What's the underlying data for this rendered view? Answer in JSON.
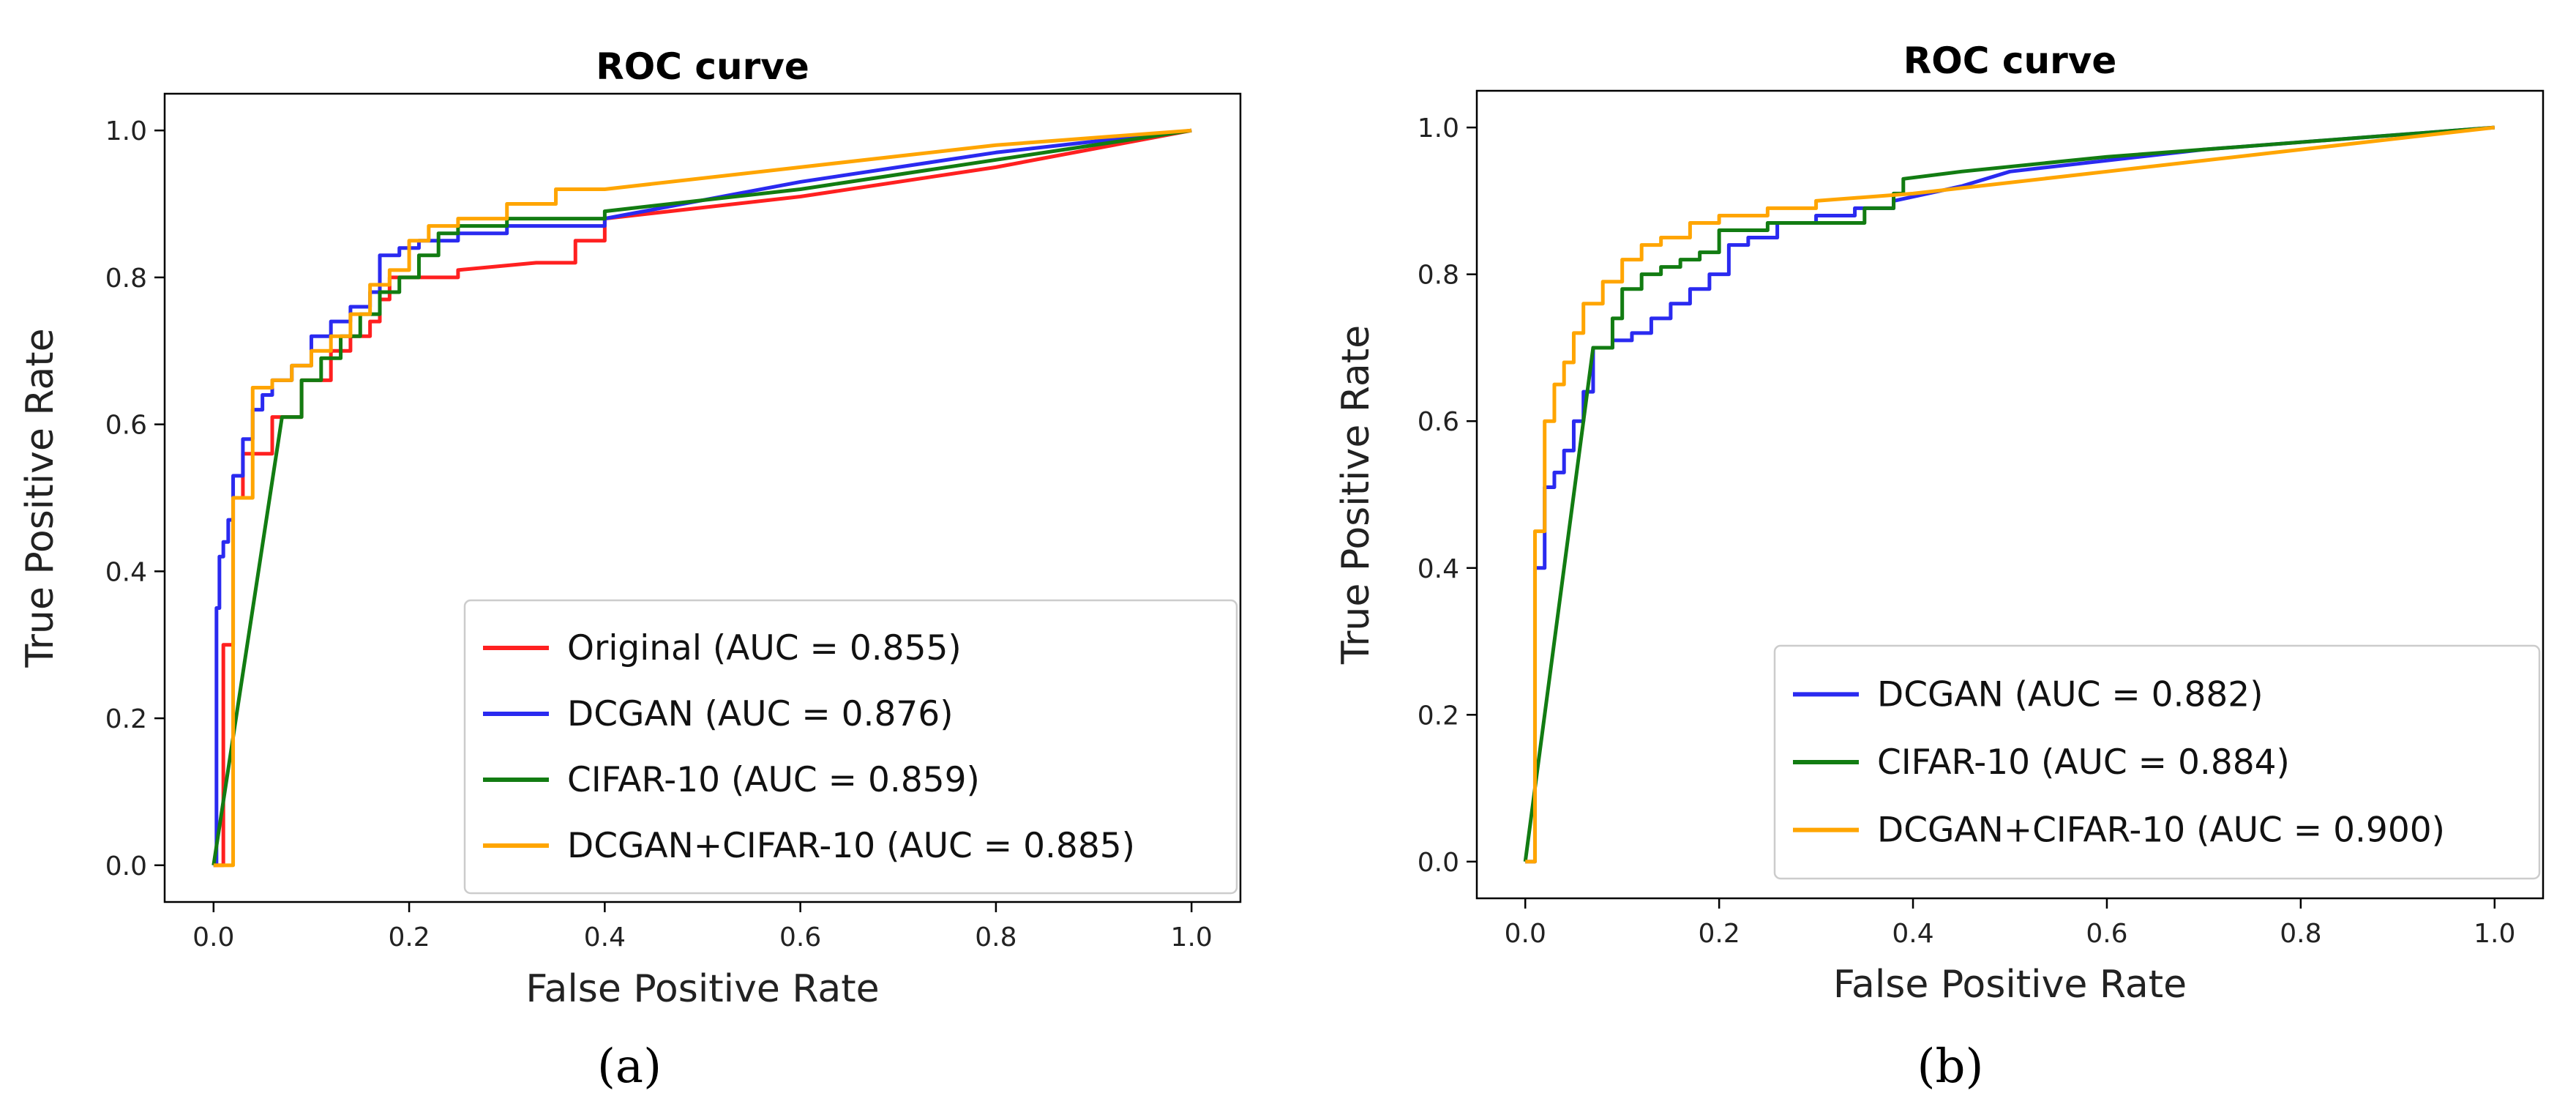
{
  "chart_data": [
    {
      "type": "line",
      "panel_label": "(a)",
      "title": "ROC curve",
      "xlabel": "False Positive Rate",
      "ylabel": "True Positive Rate",
      "xlim": [
        -0.05,
        1.05
      ],
      "ylim": [
        -0.05,
        1.05
      ],
      "xticks": [
        "0.0",
        "0.2",
        "0.4",
        "0.6",
        "0.8",
        "1.0"
      ],
      "yticks": [
        "0.0",
        "0.2",
        "0.4",
        "0.6",
        "0.8",
        "1.0"
      ],
      "grid": false,
      "legend_position": "lower-right",
      "series": [
        {
          "name": "Original (AUC = 0.855)",
          "color": "#ff2020",
          "x": [
            0,
            0.01,
            0.02,
            0.03,
            0.06,
            0.09,
            0.12,
            0.14,
            0.16,
            0.17,
            0.18,
            0.19,
            0.21,
            0.25,
            0.33,
            0.35,
            0.37,
            0.4,
            0.6,
            0.8,
            1.0
          ],
          "y": [
            0,
            0.3,
            0.5,
            0.56,
            0.61,
            0.66,
            0.7,
            0.72,
            0.74,
            0.77,
            0.8,
            0.8,
            0.8,
            0.81,
            0.82,
            0.82,
            0.85,
            0.88,
            0.91,
            0.95,
            1.0
          ]
        },
        {
          "name": "DCGAN (AUC = 0.876)",
          "color": "#2a2af0",
          "x": [
            0,
            0.003,
            0.006,
            0.01,
            0.015,
            0.02,
            0.03,
            0.04,
            0.05,
            0.06,
            0.08,
            0.1,
            0.12,
            0.14,
            0.16,
            0.17,
            0.19,
            0.21,
            0.25,
            0.3,
            0.35,
            0.4,
            0.6,
            0.8,
            1.0
          ],
          "y": [
            0,
            0.35,
            0.42,
            0.44,
            0.47,
            0.53,
            0.58,
            0.62,
            0.64,
            0.66,
            0.68,
            0.72,
            0.74,
            0.76,
            0.78,
            0.83,
            0.84,
            0.85,
            0.86,
            0.87,
            0.87,
            0.88,
            0.93,
            0.97,
            1.0
          ]
        },
        {
          "name": "CIFAR-10 (AUC = 0.859)",
          "color": "#127c12",
          "x": [
            0,
            0.07,
            0.09,
            0.11,
            0.13,
            0.15,
            0.17,
            0.19,
            0.21,
            0.23,
            0.25,
            0.3,
            0.35,
            0.4,
            0.6,
            0.8,
            1.0
          ],
          "y": [
            0,
            0.61,
            0.66,
            0.69,
            0.72,
            0.75,
            0.78,
            0.8,
            0.83,
            0.86,
            0.87,
            0.88,
            0.88,
            0.89,
            0.92,
            0.96,
            1.0
          ]
        },
        {
          "name": "DCGAN+CIFAR-10 (AUC = 0.885)",
          "color": "#ffa500",
          "x": [
            0,
            0.02,
            0.04,
            0.06,
            0.08,
            0.1,
            0.12,
            0.14,
            0.16,
            0.18,
            0.2,
            0.22,
            0.25,
            0.3,
            0.35,
            0.4,
            0.6,
            0.8,
            1.0
          ],
          "y": [
            0,
            0.5,
            0.65,
            0.66,
            0.68,
            0.7,
            0.72,
            0.75,
            0.79,
            0.81,
            0.85,
            0.87,
            0.88,
            0.9,
            0.92,
            0.92,
            0.95,
            0.98,
            1.0
          ]
        }
      ]
    },
    {
      "type": "line",
      "panel_label": "(b)",
      "title": "ROC curve",
      "xlabel": "False Positive Rate",
      "ylabel": "True Positive Rate",
      "xlim": [
        -0.05,
        1.05
      ],
      "ylim": [
        -0.05,
        1.05
      ],
      "xticks": [
        "0.0",
        "0.2",
        "0.4",
        "0.6",
        "0.8",
        "1.0"
      ],
      "yticks": [
        "0.0",
        "0.2",
        "0.4",
        "0.6",
        "0.8",
        "1.0"
      ],
      "grid": false,
      "legend_position": "lower-right",
      "series": [
        {
          "name": "DCGAN (AUC = 0.882)",
          "color": "#2a2af0",
          "x": [
            0,
            0.01,
            0.02,
            0.03,
            0.04,
            0.05,
            0.06,
            0.07,
            0.09,
            0.11,
            0.13,
            0.15,
            0.17,
            0.19,
            0.21,
            0.23,
            0.26,
            0.3,
            0.34,
            0.38,
            0.45,
            0.5,
            0.7,
            0.9,
            1.0
          ],
          "y": [
            0,
            0.4,
            0.51,
            0.53,
            0.56,
            0.6,
            0.64,
            0.7,
            0.71,
            0.72,
            0.74,
            0.76,
            0.78,
            0.8,
            0.84,
            0.85,
            0.87,
            0.88,
            0.89,
            0.9,
            0.92,
            0.94,
            0.97,
            0.99,
            1.0
          ]
        },
        {
          "name": "CIFAR-10 (AUC = 0.884)",
          "color": "#127c12",
          "x": [
            0,
            0.07,
            0.09,
            0.1,
            0.12,
            0.14,
            0.16,
            0.18,
            0.2,
            0.22,
            0.25,
            0.3,
            0.35,
            0.38,
            0.39,
            0.45,
            0.6,
            0.8,
            1.0
          ],
          "y": [
            0,
            0.7,
            0.74,
            0.78,
            0.8,
            0.81,
            0.82,
            0.83,
            0.86,
            0.86,
            0.87,
            0.87,
            0.89,
            0.91,
            0.93,
            0.94,
            0.96,
            0.98,
            1.0
          ]
        },
        {
          "name": "DCGAN+CIFAR-10 (AUC = 0.900)",
          "color": "#ffa500",
          "x": [
            0,
            0.01,
            0.02,
            0.03,
            0.04,
            0.05,
            0.06,
            0.08,
            0.1,
            0.12,
            0.14,
            0.17,
            0.2,
            0.25,
            0.3,
            0.4,
            0.6,
            0.8,
            1.0
          ],
          "y": [
            0,
            0.45,
            0.6,
            0.65,
            0.68,
            0.72,
            0.76,
            0.79,
            0.82,
            0.84,
            0.85,
            0.87,
            0.88,
            0.89,
            0.9,
            0.91,
            0.94,
            0.97,
            1.0
          ]
        }
      ]
    }
  ]
}
